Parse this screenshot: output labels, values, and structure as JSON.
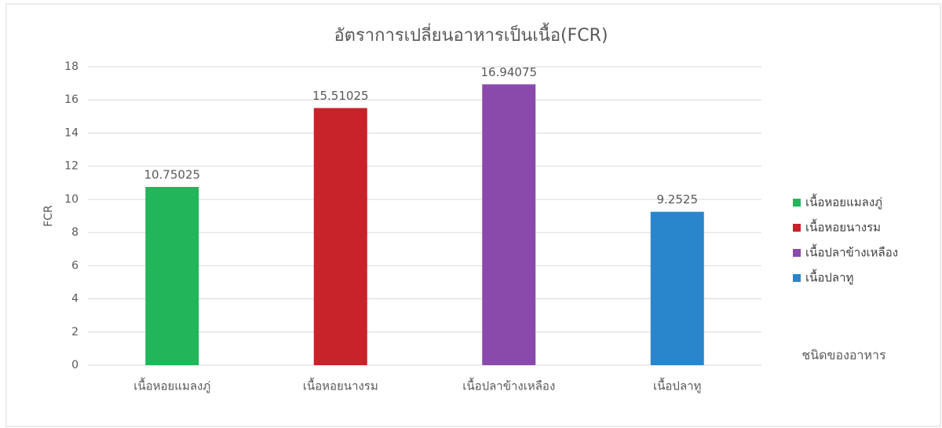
{
  "chart_data": {
    "type": "bar",
    "title": "อัตราการเปลี่ยนอาหารเป็นเนื้อ(FCR)",
    "y_label": "FCR",
    "x_label": "ชนิดของอาหาร",
    "categories": [
      "เนื้อหอยแมลงภู่",
      "เนื้อหอยนางรม",
      "เนื้อปลาข้างเหลือง",
      "เนื้อปลาทู"
    ],
    "values": [
      10.75025,
      15.51025,
      16.94075,
      9.2525
    ],
    "colors": [
      "#22b55a",
      "#c8232a",
      "#8a4aab",
      "#2a86cc"
    ],
    "ylim": [
      0,
      18
    ],
    "yticks": [
      0,
      2,
      4,
      6,
      8,
      10,
      12,
      14,
      16,
      18
    ],
    "grid": true,
    "legend": "right"
  }
}
